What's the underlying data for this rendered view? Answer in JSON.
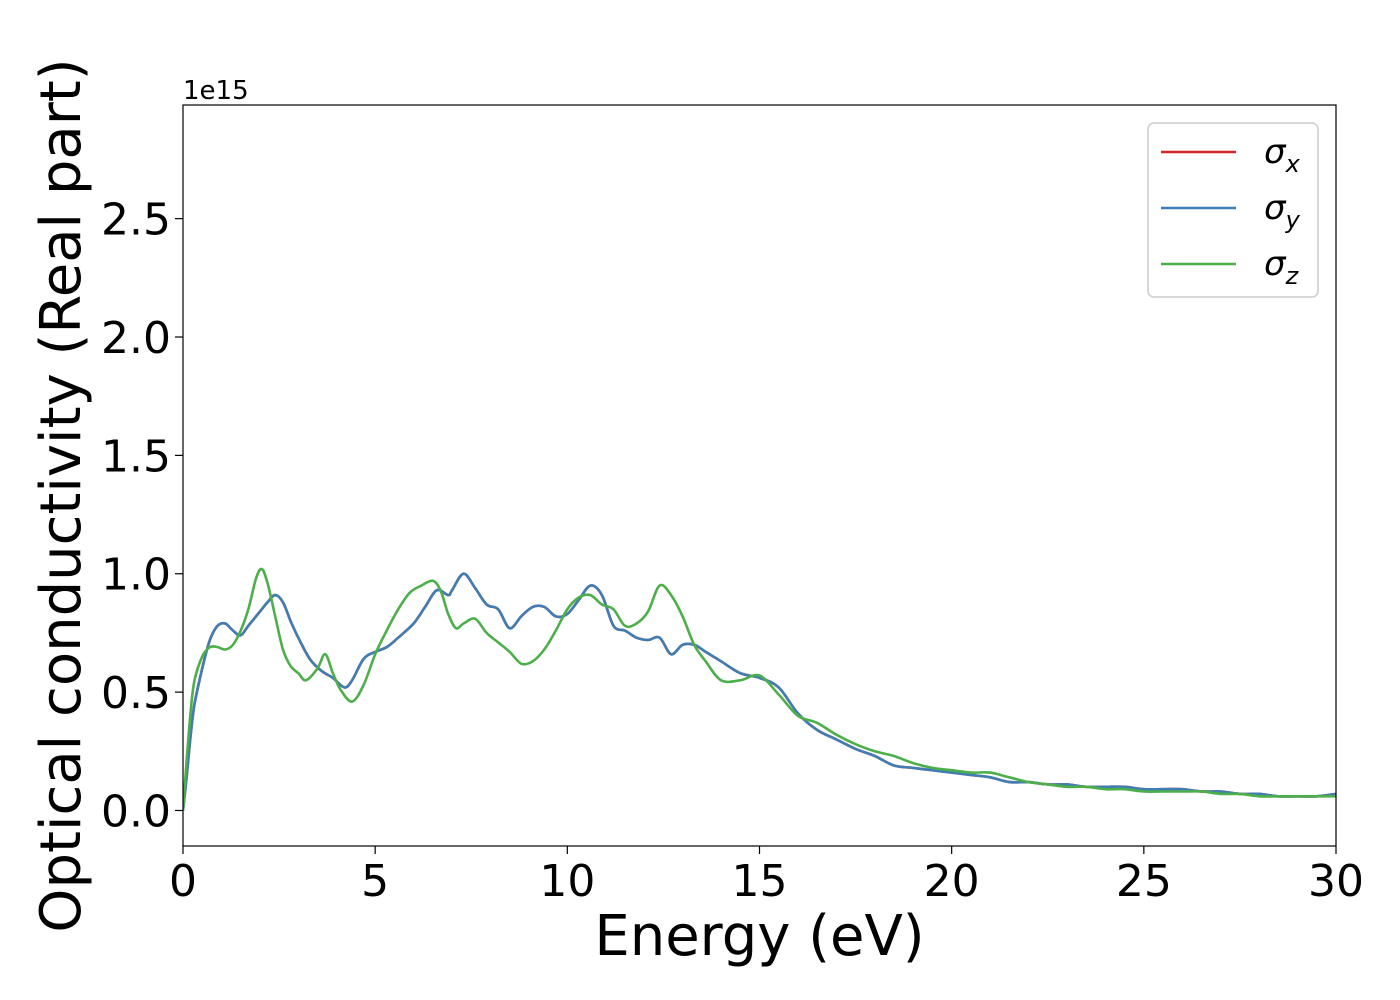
{
  "chart_data": {
    "type": "line",
    "title": "",
    "xlabel": "Energy (eV)",
    "ylabel": "Optical conductivity (Real part)",
    "y_offset_label": "1e15",
    "xlim": [
      0,
      30
    ],
    "ylim": [
      -0.15,
      2.98
    ],
    "xticks": [
      0,
      5,
      10,
      15,
      20,
      25,
      30
    ],
    "xtick_labels": [
      "0",
      "5",
      "10",
      "15",
      "20",
      "25",
      "30"
    ],
    "yticks": [
      0.0,
      0.5,
      1.0,
      1.5,
      2.0,
      2.5
    ],
    "ytick_labels": [
      "0.0",
      "0.5",
      "1.0",
      "1.5",
      "2.0",
      "2.5"
    ],
    "grid": false,
    "legend_position": "top-right",
    "series": [
      {
        "name": "σx",
        "legend_symbol": "σ",
        "legend_subscript": "x",
        "color": "#d62728",
        "x": [
          0,
          0.1,
          0.2,
          0.3,
          0.5,
          0.7,
          0.9,
          1.1,
          1.3,
          1.5,
          1.7,
          2.0,
          2.2,
          2.4,
          2.6,
          2.8,
          3.0,
          3.3,
          3.6,
          3.9,
          4.2,
          4.4,
          4.7,
          5.0,
          5.3,
          5.6,
          6.0,
          6.3,
          6.6,
          6.9,
          7.0,
          7.3,
          7.6,
          7.9,
          8.2,
          8.5,
          8.8,
          9.1,
          9.4,
          9.7,
          10.0,
          10.3,
          10.6,
          10.9,
          11.2,
          11.5,
          11.8,
          12.1,
          12.4,
          12.7,
          13.0,
          13.3,
          13.6,
          14.0,
          14.5,
          15.0,
          15.5,
          16.0,
          16.5,
          17.0,
          17.5,
          18.0,
          18.5,
          19.0,
          19.5,
          20.0,
          20.5,
          21.0,
          21.5,
          22.0,
          22.5,
          23.0,
          23.5,
          24.0,
          24.5,
          25.0,
          25.5,
          26.0,
          26.5,
          27.0,
          27.5,
          28.0,
          28.5,
          29.0,
          29.5,
          30.0
        ],
        "values": [
          0.0,
          0.15,
          0.32,
          0.45,
          0.6,
          0.72,
          0.78,
          0.79,
          0.76,
          0.74,
          0.78,
          0.84,
          0.88,
          0.91,
          0.88,
          0.8,
          0.73,
          0.64,
          0.59,
          0.56,
          0.52,
          0.55,
          0.64,
          0.67,
          0.69,
          0.73,
          0.79,
          0.86,
          0.93,
          0.91,
          0.93,
          1.0,
          0.94,
          0.87,
          0.85,
          0.77,
          0.82,
          0.86,
          0.86,
          0.82,
          0.83,
          0.89,
          0.95,
          0.91,
          0.78,
          0.76,
          0.73,
          0.72,
          0.73,
          0.66,
          0.7,
          0.7,
          0.67,
          0.63,
          0.58,
          0.56,
          0.52,
          0.41,
          0.34,
          0.3,
          0.26,
          0.23,
          0.19,
          0.18,
          0.17,
          0.16,
          0.15,
          0.14,
          0.12,
          0.12,
          0.11,
          0.11,
          0.1,
          0.1,
          0.1,
          0.09,
          0.09,
          0.09,
          0.08,
          0.08,
          0.07,
          0.07,
          0.06,
          0.06,
          0.06,
          0.07
        ]
      },
      {
        "name": "σy",
        "legend_symbol": "σ",
        "legend_subscript": "y",
        "color": "#3f7eb5",
        "x": [
          0,
          0.1,
          0.2,
          0.3,
          0.5,
          0.7,
          0.9,
          1.1,
          1.3,
          1.5,
          1.7,
          2.0,
          2.2,
          2.4,
          2.6,
          2.8,
          3.0,
          3.3,
          3.6,
          3.9,
          4.2,
          4.4,
          4.7,
          5.0,
          5.3,
          5.6,
          6.0,
          6.3,
          6.6,
          6.9,
          7.0,
          7.3,
          7.6,
          7.9,
          8.2,
          8.5,
          8.8,
          9.1,
          9.4,
          9.7,
          10.0,
          10.3,
          10.6,
          10.9,
          11.2,
          11.5,
          11.8,
          12.1,
          12.4,
          12.7,
          13.0,
          13.3,
          13.6,
          14.0,
          14.5,
          15.0,
          15.5,
          16.0,
          16.5,
          17.0,
          17.5,
          18.0,
          18.5,
          19.0,
          19.5,
          20.0,
          20.5,
          21.0,
          21.5,
          22.0,
          22.5,
          23.0,
          23.5,
          24.0,
          24.5,
          25.0,
          25.5,
          26.0,
          26.5,
          27.0,
          27.5,
          28.0,
          28.5,
          29.0,
          29.5,
          30.0
        ],
        "values": [
          0.0,
          0.15,
          0.32,
          0.45,
          0.6,
          0.72,
          0.78,
          0.79,
          0.76,
          0.74,
          0.78,
          0.84,
          0.88,
          0.91,
          0.88,
          0.8,
          0.73,
          0.64,
          0.59,
          0.56,
          0.52,
          0.55,
          0.64,
          0.67,
          0.69,
          0.73,
          0.79,
          0.86,
          0.93,
          0.91,
          0.93,
          1.0,
          0.94,
          0.87,
          0.85,
          0.77,
          0.82,
          0.86,
          0.86,
          0.82,
          0.83,
          0.89,
          0.95,
          0.91,
          0.78,
          0.76,
          0.73,
          0.72,
          0.73,
          0.66,
          0.7,
          0.7,
          0.67,
          0.63,
          0.58,
          0.56,
          0.52,
          0.41,
          0.34,
          0.3,
          0.26,
          0.23,
          0.19,
          0.18,
          0.17,
          0.16,
          0.15,
          0.14,
          0.12,
          0.12,
          0.11,
          0.11,
          0.1,
          0.1,
          0.1,
          0.09,
          0.09,
          0.09,
          0.08,
          0.08,
          0.07,
          0.07,
          0.06,
          0.06,
          0.06,
          0.07
        ]
      },
      {
        "name": "σz",
        "legend_symbol": "σ",
        "legend_subscript": "z",
        "color": "#4daf4a",
        "x": [
          0,
          0.1,
          0.2,
          0.3,
          0.5,
          0.7,
          0.9,
          1.1,
          1.3,
          1.5,
          1.7,
          1.9,
          2.05,
          2.2,
          2.4,
          2.6,
          2.8,
          3.0,
          3.2,
          3.5,
          3.7,
          3.9,
          4.1,
          4.4,
          4.7,
          5.0,
          5.3,
          5.6,
          5.9,
          6.2,
          6.5,
          6.7,
          6.9,
          7.1,
          7.3,
          7.6,
          7.9,
          8.2,
          8.5,
          8.8,
          9.1,
          9.4,
          9.7,
          10.0,
          10.3,
          10.6,
          10.9,
          11.2,
          11.5,
          11.8,
          12.1,
          12.4,
          12.7,
          13.0,
          13.3,
          13.6,
          14.0,
          14.5,
          15.0,
          15.5,
          16.0,
          16.5,
          17.0,
          17.5,
          18.0,
          18.5,
          19.0,
          19.5,
          20.0,
          20.5,
          21.0,
          21.5,
          22.0,
          22.5,
          23.0,
          23.5,
          24.0,
          24.5,
          25.0,
          25.5,
          26.0,
          26.5,
          27.0,
          27.5,
          28.0,
          28.5,
          29.0,
          29.5,
          30.0
        ],
        "values": [
          0.0,
          0.22,
          0.42,
          0.55,
          0.65,
          0.69,
          0.69,
          0.68,
          0.7,
          0.76,
          0.85,
          0.98,
          1.02,
          0.96,
          0.82,
          0.68,
          0.61,
          0.58,
          0.55,
          0.6,
          0.66,
          0.58,
          0.51,
          0.46,
          0.53,
          0.66,
          0.76,
          0.85,
          0.92,
          0.95,
          0.97,
          0.93,
          0.83,
          0.77,
          0.79,
          0.81,
          0.75,
          0.71,
          0.67,
          0.62,
          0.63,
          0.68,
          0.76,
          0.85,
          0.9,
          0.91,
          0.87,
          0.85,
          0.78,
          0.79,
          0.84,
          0.95,
          0.91,
          0.82,
          0.7,
          0.63,
          0.55,
          0.55,
          0.57,
          0.49,
          0.4,
          0.37,
          0.32,
          0.28,
          0.25,
          0.23,
          0.2,
          0.18,
          0.17,
          0.16,
          0.16,
          0.14,
          0.12,
          0.11,
          0.1,
          0.1,
          0.09,
          0.09,
          0.08,
          0.08,
          0.08,
          0.08,
          0.07,
          0.07,
          0.06,
          0.06,
          0.06,
          0.06,
          0.06
        ]
      }
    ]
  }
}
